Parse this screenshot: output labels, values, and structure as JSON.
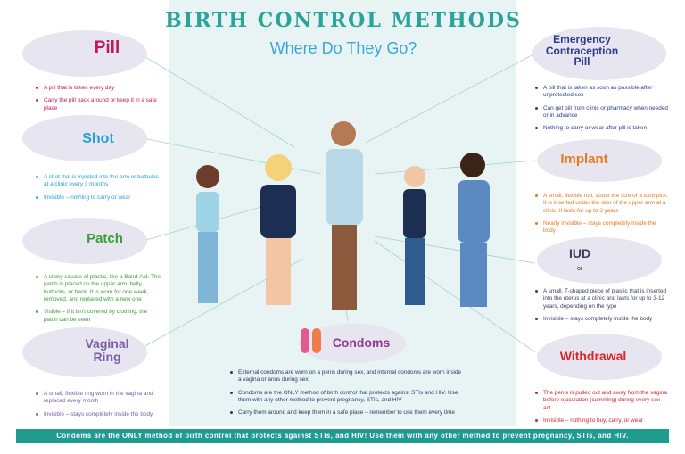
{
  "header": {
    "title": "BIRTH CONTROL METHODS",
    "subtitle": "Where Do They Go?"
  },
  "left_methods": [
    {
      "name": "Pill",
      "bullets": [
        "A pill that is taken every day",
        "Carry the pill pack around or keep it in a safe place"
      ]
    },
    {
      "name": "Shot",
      "bullets": [
        "A shot that is injected into the arm or buttocks at a clinic every 3 months",
        "Invisible – nothing to carry or wear"
      ]
    },
    {
      "name": "Patch",
      "bullets": [
        "A sticky square of plastic, like a Band-Aid. The patch is placed on the upper arm, belly, buttocks, or back. It is worn for one week, removed, and replaced with a new one",
        "Visible – if it isn't covered by clothing, the patch can be seen"
      ]
    },
    {
      "name": "Vaginal Ring",
      "bullets": [
        "A small, flexible ring worn in the vagina and replaced every month",
        "Invisible – stays completely inside the body"
      ]
    }
  ],
  "right_methods": [
    {
      "name": "Emergency Contraception Pill",
      "bullets": [
        "A pill that is taken as soon as possible after unprotected sex",
        "Can get pill from clinic or pharmacy when needed or in advance",
        "Nothing to carry or wear after pill is taken"
      ]
    },
    {
      "name": "Implant",
      "bullets": [
        "A small, flexible rod, about the size of a toothpick. It is inserted under the skin of the upper arm at a clinic. It lasts for up to 3 years",
        "Nearly invisible – stays completely inside the body"
      ]
    },
    {
      "name": "IUD",
      "illustration_text": "or",
      "bullets": [
        "A small, T-shaped piece of plastic that is inserted into the uterus at a clinic and lasts for up to 3-12 years, depending on the type",
        "Invisible – stays completely inside the body"
      ]
    },
    {
      "name": "Withdrawal",
      "bullets": [
        "The penis is pulled out and away from the vagina before ejaculation (cumming) during every sex act",
        "Invisible – nothing to buy, carry, or wear"
      ]
    }
  ],
  "center_method": {
    "name": "Condoms",
    "bullets": [
      "External condoms are worn on a penis during sex, and internal condoms are worn inside a vagina or anus during sex",
      "Condoms are the ONLY method of birth control that protects against STIs and HIV. Use them with any other method to prevent pregnancy, STIs, and HIV",
      "Carry them around and keep them in a safe place – remember to use them every time"
    ]
  },
  "footer": "Condoms are the ONLY method of birth control that protects against STIs, and HIV! Use them with any other method to prevent pregnancy, STIs, and HIV."
}
